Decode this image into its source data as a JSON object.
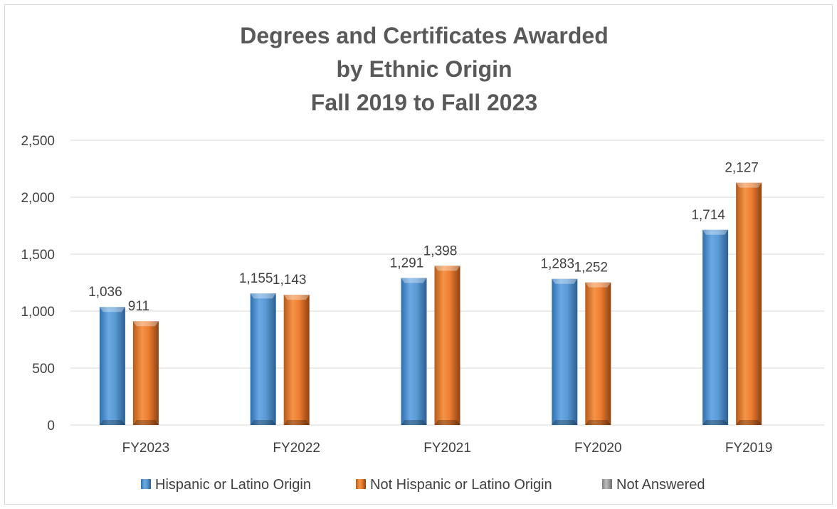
{
  "chart_data": {
    "type": "bar",
    "title": [
      "Degrees and Certificates Awarded",
      "by Ethnic Origin",
      "Fall 2019 to Fall 2023"
    ],
    "xlabel": "",
    "ylabel": "",
    "categories": [
      "FY2023",
      "FY2022",
      "FY2021",
      "FY2020",
      "FY2019"
    ],
    "series": [
      {
        "name": "Hispanic or Latino Origin",
        "values": [
          1036,
          1155,
          1291,
          1283,
          1714
        ],
        "color": "#5b9bd5"
      },
      {
        "name": "Not Hispanic or Latino Origin",
        "values": [
          911,
          1143,
          1398,
          1252,
          2127
        ],
        "color": "#ed7d31"
      },
      {
        "name": "Not Answered",
        "values": [
          0,
          0,
          0,
          0,
          0
        ],
        "color": "#a5a5a5"
      }
    ],
    "data_labels": [
      [
        "1,036",
        "1,155",
        "1,291",
        "1,283",
        "1,714"
      ],
      [
        "911",
        "1,143",
        "1,398",
        "1,252",
        "2,127"
      ],
      [
        "",
        "",
        "",
        "",
        ""
      ]
    ],
    "ylim": [
      0,
      2500
    ],
    "yticks": [
      0,
      500,
      1000,
      1500,
      2000,
      2500
    ],
    "ytick_labels": [
      "0",
      "500",
      "1,000",
      "1,500",
      "2,000",
      "2,500"
    ],
    "grid": true,
    "legend_position": "bottom"
  }
}
